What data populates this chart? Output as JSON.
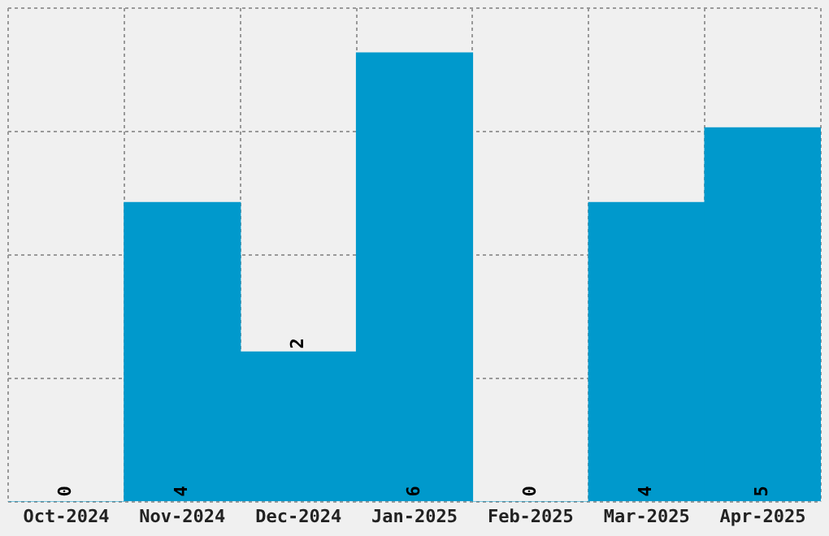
{
  "chart_data": {
    "type": "bar",
    "categories": [
      "Oct-2024",
      "Nov-2024",
      "Dec-2024",
      "Jan-2025",
      "Feb-2025",
      "Mar-2025",
      "Apr-2025"
    ],
    "values": [
      0,
      4,
      2,
      6,
      0,
      4,
      5
    ],
    "color": "#0099cc",
    "data_labels": true,
    "grid": true,
    "tick_labels": "x",
    "ylim": [
      0,
      6.6
    ],
    "yticks": [
      {
        "value": 0,
        "label": null
      },
      {
        "value": 1.65,
        "label": null
      },
      {
        "value": 3.3,
        "label": null
      },
      {
        "value": 4.95,
        "label": null
      },
      {
        "value": 6.6,
        "label": null
      }
    ]
  }
}
